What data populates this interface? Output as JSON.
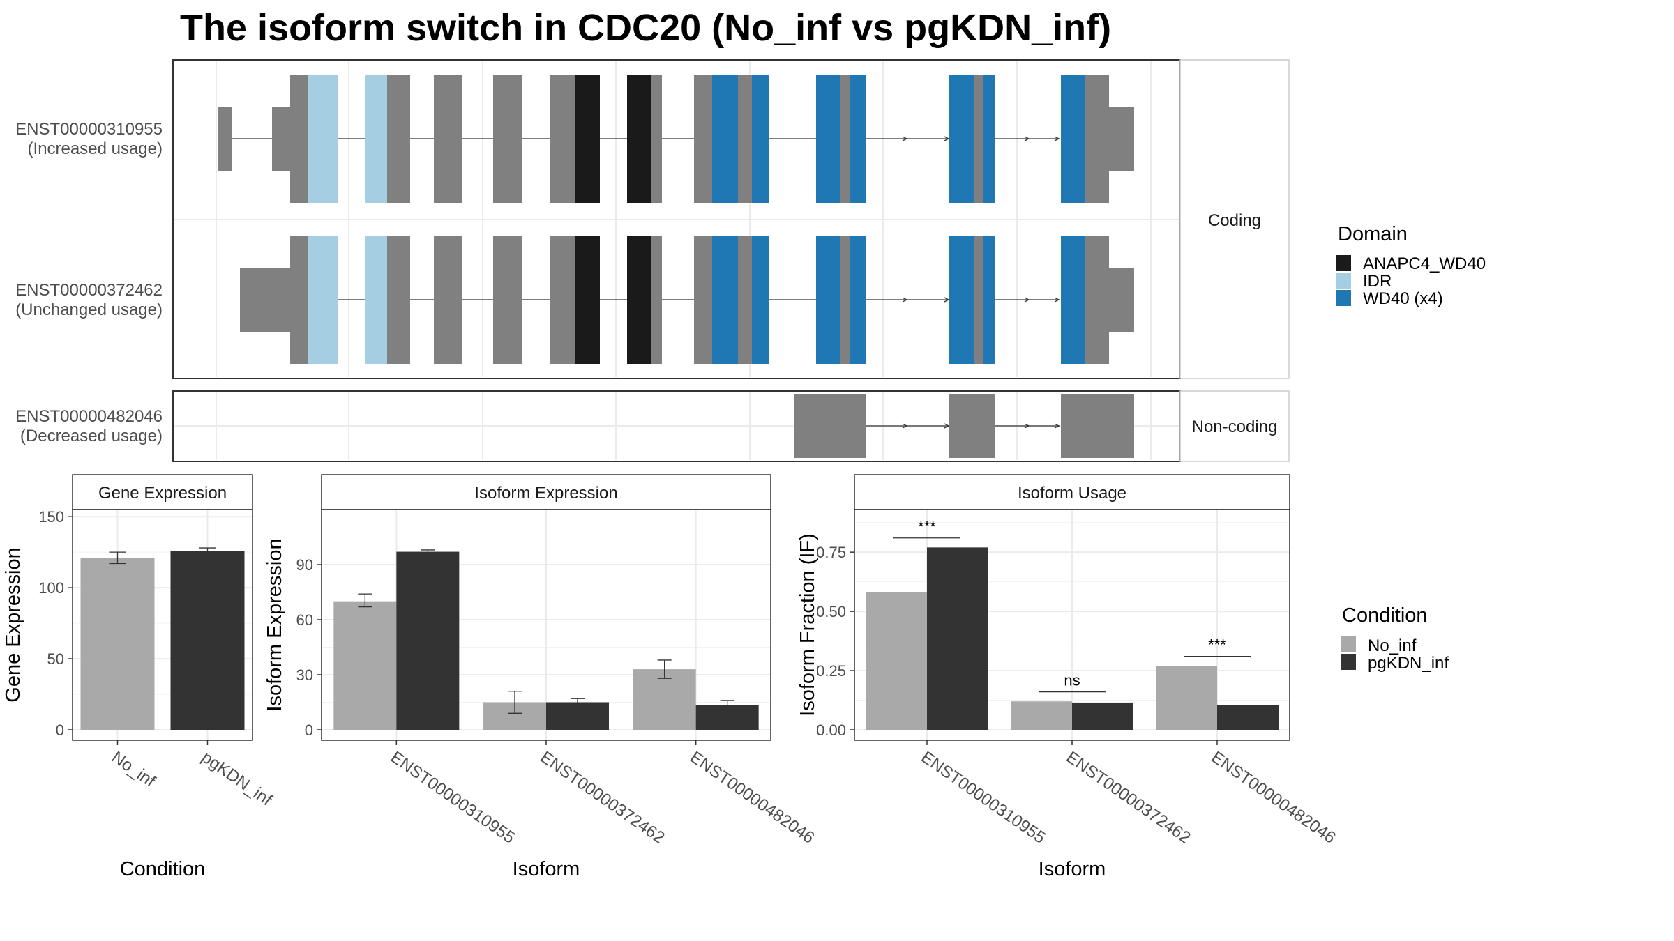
{
  "title": "The isoform switch in CDC20 (No_inf vs pgKDN_inf)",
  "colors": {
    "no_inf": "#a9a9a9",
    "pgkdn_inf": "#333333",
    "utr": "#808080",
    "anapc4": "#1a1a1a",
    "idr": "#a6cee3",
    "wd40": "#1f78b4"
  },
  "structure": {
    "transcripts": [
      {
        "id": "ENST00000310955",
        "note": "(Increased usage)"
      },
      {
        "id": "ENST00000372462",
        "note": "(Unchanged usage)"
      },
      {
        "id": "ENST00000482046",
        "note": "(Decreased usage)"
      }
    ],
    "strip_coding": "Coding",
    "strip_noncoding": "Non-coding"
  },
  "domain_legend": {
    "title": "Domain",
    "entries": [
      {
        "label": "ANAPC4_WD40",
        "color": "#1a1a1a"
      },
      {
        "label": "IDR",
        "color": "#a6cee3"
      },
      {
        "label": "WD40 (x4)",
        "color": "#1f78b4"
      }
    ]
  },
  "condition_legend": {
    "title": "Condition",
    "entries": [
      {
        "label": "No_inf",
        "color": "#a9a9a9"
      },
      {
        "label": "pgKDN_inf",
        "color": "#333333"
      }
    ]
  },
  "chart_data": [
    {
      "type": "bar",
      "facet_title": "Gene Expression",
      "xlabel": "Condition",
      "ylabel": "Gene Expression",
      "ylim": [
        0,
        155
      ],
      "yticks": [
        0,
        50,
        100,
        150
      ],
      "categories": [
        "No_inf",
        "pgKDN_inf"
      ],
      "values": [
        121,
        126
      ],
      "errors": [
        [
          117,
          125
        ],
        [
          124,
          128
        ]
      ]
    },
    {
      "type": "bar",
      "facet_title": "Isoform Expression",
      "xlabel": "Isoform",
      "ylabel": "Isoform Expression",
      "ylim": [
        0,
        120
      ],
      "yticks": [
        0,
        30,
        60,
        90
      ],
      "categories": [
        "ENST00000310955",
        "ENST00000372462",
        "ENST00000482046"
      ],
      "series": [
        {
          "name": "No_inf",
          "values": [
            70,
            15,
            33
          ],
          "errors": [
            [
              67,
              74
            ],
            [
              9,
              21
            ],
            [
              28,
              38
            ]
          ]
        },
        {
          "name": "pgKDN_inf",
          "values": [
            97,
            15,
            13.5
          ],
          "errors": [
            [
              96.5,
              98
            ],
            [
              13,
              17
            ],
            [
              11,
              16
            ]
          ]
        }
      ]
    },
    {
      "type": "bar",
      "facet_title": "Isoform Usage",
      "xlabel": "Isoform",
      "ylabel": "Isoform Fraction (IF)",
      "ylim": [
        0,
        0.93
      ],
      "yticks": [
        "0.00",
        "0.25",
        "0.50",
        "0.75"
      ],
      "categories": [
        "ENST00000310955",
        "ENST00000372462",
        "ENST00000482046"
      ],
      "series": [
        {
          "name": "No_inf",
          "values": [
            0.58,
            0.12,
            0.27
          ]
        },
        {
          "name": "pgKDN_inf",
          "values": [
            0.77,
            0.115,
            0.105
          ]
        }
      ],
      "significance": [
        "***",
        "ns",
        "***"
      ],
      "sig_heights": [
        0.81,
        0.16,
        0.31
      ]
    }
  ]
}
